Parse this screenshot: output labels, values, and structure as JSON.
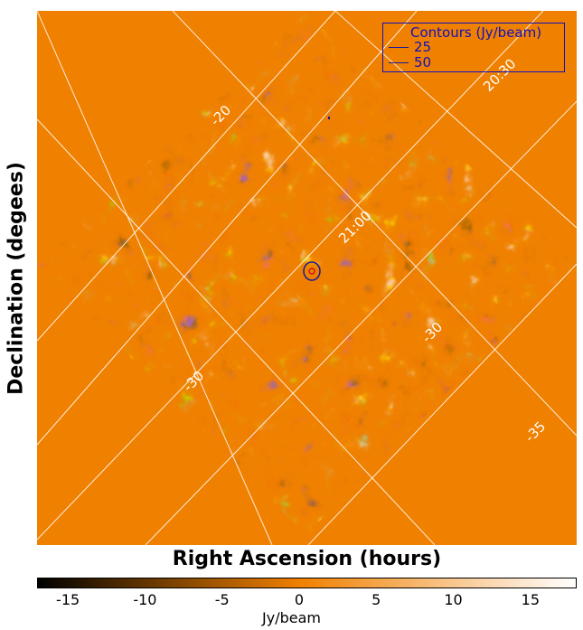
{
  "chart_data": {
    "type": "heatmap",
    "title": "",
    "xlabel": "Right Ascension (hours)",
    "ylabel": "Declination (degees)",
    "colorbar": {
      "ticks": [
        "-15",
        "-10",
        "-5",
        "0",
        "5",
        "10",
        "15"
      ],
      "range": [
        -17,
        18
      ],
      "unit": "Jy/beam",
      "colors": [
        "#000000",
        "#f08000",
        "#ffffff"
      ]
    },
    "grid_labels": {
      "ra": [
        "21:00",
        "20:30"
      ],
      "dec": [
        "-20",
        "-30",
        "-30",
        "-35"
      ]
    },
    "legend": {
      "title": "Contours (Jy/beam)",
      "levels": [
        "25",
        "50"
      ],
      "placement": "top-right"
    },
    "background_value": 0,
    "colors": {
      "background": "#f08000",
      "contour_25": "#1a1a9a",
      "contour_50": "#d01818",
      "legend": "#1010c0"
    }
  }
}
